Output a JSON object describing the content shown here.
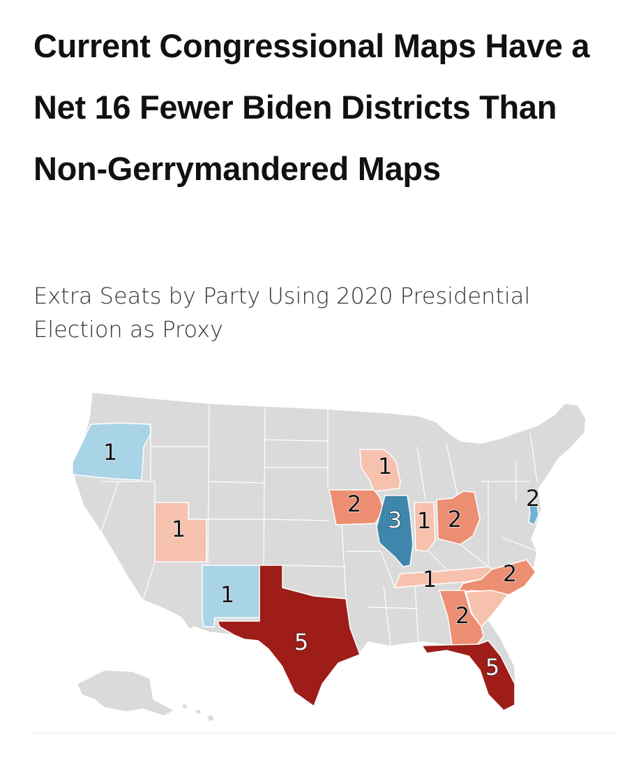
{
  "title": "Current Congressional Maps Have a Net 16 Fewer Biden Districts Than Non-Gerrymandered Maps",
  "subtitle": "Extra Seats by Party Using 2020 Presidential Election as Proxy",
  "colors": {
    "other_state": "#dbdadb",
    "border": "#ffffff",
    "dem_light": "#a9d3e7",
    "dem_mid": "#6fb2d1",
    "dem_dark": "#3f86ac",
    "rep_1": "#f6c1ad",
    "rep_2": "#ec8e72",
    "rep_5": "#9e1d18"
  },
  "map": {
    "states": [
      {
        "state": "Oregon",
        "party": "Democratic",
        "seats": 1,
        "label": "1"
      },
      {
        "state": "Utah",
        "party": "Republican",
        "seats": 1,
        "label": "1"
      },
      {
        "state": "New Mexico",
        "party": "Democratic",
        "seats": 1,
        "label": "1"
      },
      {
        "state": "Texas",
        "party": "Republican",
        "seats": 5,
        "label": "5"
      },
      {
        "state": "Wisconsin",
        "party": "Republican",
        "seats": 1,
        "label": "1"
      },
      {
        "state": "Iowa",
        "party": "Republican",
        "seats": 2,
        "label": "2"
      },
      {
        "state": "Illinois",
        "party": "Democratic",
        "seats": 3,
        "label": "3"
      },
      {
        "state": "Indiana",
        "party": "Republican",
        "seats": 1,
        "label": "1"
      },
      {
        "state": "Ohio",
        "party": "Republican",
        "seats": 2,
        "label": "2"
      },
      {
        "state": "New Jersey",
        "party": "Democratic",
        "seats": 2,
        "label": "2"
      },
      {
        "state": "Tennessee",
        "party": "Republican",
        "seats": 1,
        "label": "1"
      },
      {
        "state": "North Carolina",
        "party": "Republican",
        "seats": 2,
        "label": "2"
      },
      {
        "state": "South Carolina",
        "party": "Republican",
        "seats": 1
      },
      {
        "state": "Georgia",
        "party": "Republican",
        "seats": 2,
        "label": "2"
      },
      {
        "state": "Florida",
        "party": "Republican",
        "seats": 5,
        "label": "5"
      }
    ]
  }
}
